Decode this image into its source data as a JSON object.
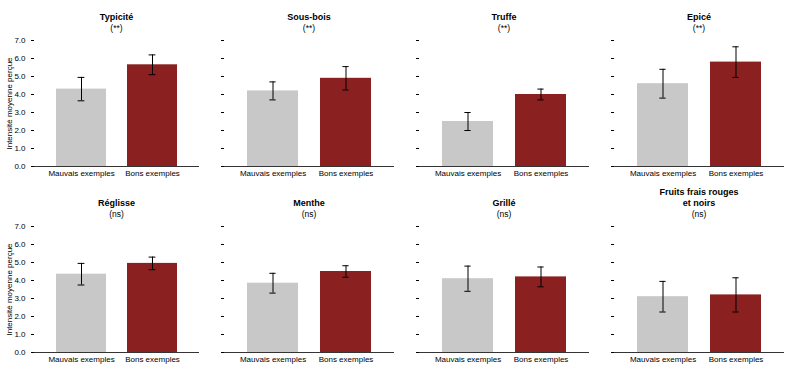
{
  "chart_data": [
    {
      "type": "bar",
      "title": "Typicité",
      "subtitle": "(**)",
      "categories": [
        "Mauvais exemples",
        "Bons exemples"
      ],
      "values": [
        4.3,
        5.65
      ],
      "errors": [
        0.65,
        0.55
      ],
      "colors": [
        "#c8c8c8",
        "#8b2020"
      ],
      "ylabel": "Intensité moyenne perçue",
      "ylim": [
        0,
        7
      ],
      "yticks": [
        0,
        1,
        2,
        3,
        4,
        5,
        6,
        7
      ],
      "grid": false
    },
    {
      "type": "bar",
      "title": "Sous-bois",
      "subtitle": "(**)",
      "categories": [
        "Mauvais exemples",
        "Bons exemples"
      ],
      "values": [
        4.2,
        4.9
      ],
      "errors": [
        0.5,
        0.65
      ],
      "colors": [
        "#c8c8c8",
        "#8b2020"
      ],
      "ylim": [
        0,
        7
      ],
      "yticks": [
        0,
        1,
        2,
        3,
        4,
        5,
        6,
        7
      ],
      "grid": false,
      "tick_labels": "x"
    },
    {
      "type": "bar",
      "title": "Truffe",
      "subtitle": "(**)",
      "categories": [
        "Mauvais exemples",
        "Bons exemples"
      ],
      "values": [
        2.5,
        4.0
      ],
      "errors": [
        0.5,
        0.3
      ],
      "colors": [
        "#c8c8c8",
        "#8b2020"
      ],
      "ylim": [
        0,
        7
      ],
      "yticks": [
        0,
        1,
        2,
        3,
        4,
        5,
        6,
        7
      ],
      "grid": false,
      "tick_labels": "x"
    },
    {
      "type": "bar",
      "title": "Epicé",
      "subtitle": "(**)",
      "categories": [
        "Mauvais exemples",
        "Bons exemples"
      ],
      "values": [
        4.6,
        5.8
      ],
      "errors": [
        0.8,
        0.85
      ],
      "colors": [
        "#c8c8c8",
        "#8b2020"
      ],
      "ylim": [
        0,
        7
      ],
      "yticks": [
        0,
        1,
        2,
        3,
        4,
        5,
        6,
        7
      ],
      "grid": false,
      "tick_labels": "x"
    },
    {
      "type": "bar",
      "title": "Réglisse",
      "subtitle": "(ns)",
      "categories": [
        "Mauvais exemples",
        "Bons exemples"
      ],
      "values": [
        4.35,
        4.95
      ],
      "errors": [
        0.6,
        0.35
      ],
      "colors": [
        "#c8c8c8",
        "#8b2020"
      ],
      "ylabel": "Intensité moyenne perçue",
      "ylim": [
        0,
        7
      ],
      "yticks": [
        0,
        1,
        2,
        3,
        4,
        5,
        6,
        7
      ],
      "grid": false
    },
    {
      "type": "bar",
      "title": "Menthe",
      "subtitle": "(ns)",
      "categories": [
        "Mauvais exemples",
        "Bons exemples"
      ],
      "values": [
        3.85,
        4.5
      ],
      "errors": [
        0.55,
        0.32
      ],
      "colors": [
        "#c8c8c8",
        "#8b2020"
      ],
      "ylim": [
        0,
        7
      ],
      "yticks": [
        0,
        1,
        2,
        3,
        4,
        5,
        6,
        7
      ],
      "grid": false,
      "tick_labels": "x"
    },
    {
      "type": "bar",
      "title": "Grillé",
      "subtitle": "(ns)",
      "categories": [
        "Mauvais exemples",
        "Bons exemples"
      ],
      "values": [
        4.1,
        4.2
      ],
      "errors": [
        0.7,
        0.55
      ],
      "colors": [
        "#c8c8c8",
        "#8b2020"
      ],
      "ylim": [
        0,
        7
      ],
      "yticks": [
        0,
        1,
        2,
        3,
        4,
        5,
        6,
        7
      ],
      "grid": false,
      "tick_labels": "x"
    },
    {
      "type": "bar",
      "title": "Fruits frais rouges\net noirs",
      "subtitle": "(ns)",
      "categories": [
        "Mauvais exemples",
        "Bons exemples"
      ],
      "values": [
        3.1,
        3.2
      ],
      "errors": [
        0.85,
        0.95
      ],
      "colors": [
        "#c8c8c8",
        "#8b2020"
      ],
      "ylim": [
        0,
        7
      ],
      "yticks": [
        0,
        1,
        2,
        3,
        4,
        5,
        6,
        7
      ],
      "grid": false,
      "tick_labels": "x"
    }
  ]
}
